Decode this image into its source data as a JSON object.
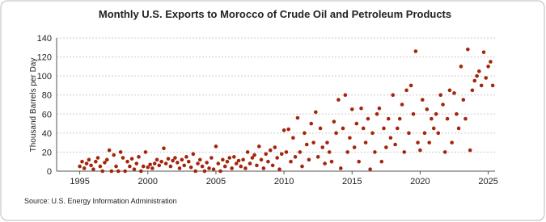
{
  "chart_data": {
    "type": "scatter",
    "title": "Monthly U.S. Exports to Morocco of Crude Oil and Petroleum Products",
    "y_label": "Thousand Barrels per Day",
    "source": "Source: U.S. Energy Information Administration",
    "xlim": [
      1993.3,
      2025.5
    ],
    "xticks": [
      1995,
      2000,
      2005,
      2010,
      2015,
      2020,
      2025
    ],
    "ylim": [
      0,
      140
    ],
    "yticks": [
      0,
      20,
      40,
      60,
      80,
      100,
      120,
      140
    ],
    "grid": true,
    "series": [
      {
        "color": "#a3260c",
        "x": [
          1995,
          1995.17,
          1995.33,
          1995.5,
          1995.67,
          1995.83,
          1996,
          1996.17,
          1996.33,
          1996.5,
          1996.67,
          1996.83,
          1997,
          1997.17,
          1997.33,
          1997.5,
          1997.67,
          1997.83,
          1998,
          1998.17,
          1998.33,
          1998.5,
          1998.67,
          1998.83,
          1999,
          1999.17,
          1999.33,
          1999.5,
          1999.67,
          1999.83,
          2000,
          2000.17,
          2000.33,
          2000.5,
          2000.67,
          2000.83,
          2001,
          2001.17,
          2001.33,
          2001.5,
          2001.67,
          2001.83,
          2002,
          2002.17,
          2002.33,
          2002.5,
          2002.67,
          2002.83,
          2003,
          2003.17,
          2003.33,
          2003.5,
          2003.67,
          2003.83,
          2004,
          2004.17,
          2004.33,
          2004.5,
          2004.67,
          2004.83,
          2005,
          2005.17,
          2005.33,
          2005.5,
          2005.67,
          2005.83,
          2006,
          2006.17,
          2006.33,
          2006.5,
          2006.67,
          2006.83,
          2007,
          2007.17,
          2007.33,
          2007.5,
          2007.67,
          2007.83,
          2008,
          2008.17,
          2008.33,
          2008.5,
          2008.67,
          2008.83,
          2009,
          2009.17,
          2009.33,
          2009.5,
          2009.67,
          2009.83,
          2010,
          2010.17,
          2010.33,
          2010.5,
          2010.67,
          2010.83,
          2011,
          2011.17,
          2011.33,
          2011.5,
          2011.67,
          2011.83,
          2012,
          2012.17,
          2012.33,
          2012.5,
          2012.67,
          2012.83,
          2013,
          2013.17,
          2013.33,
          2013.5,
          2013.67,
          2013.83,
          2014,
          2014.17,
          2014.33,
          2014.5,
          2014.67,
          2014.83,
          2015,
          2015.17,
          2015.33,
          2015.5,
          2015.67,
          2015.83,
          2016,
          2016.17,
          2016.33,
          2016.5,
          2016.67,
          2016.83,
          2017,
          2017.17,
          2017.33,
          2017.5,
          2017.67,
          2017.83,
          2018,
          2018.17,
          2018.33,
          2018.5,
          2018.67,
          2018.83,
          2019,
          2019.17,
          2019.33,
          2019.5,
          2019.67,
          2019.83,
          2020,
          2020.17,
          2020.33,
          2020.5,
          2020.67,
          2020.83,
          2021,
          2021.17,
          2021.33,
          2021.5,
          2021.67,
          2021.83,
          2022,
          2022.17,
          2022.33,
          2022.5,
          2022.67,
          2022.83,
          2023,
          2023.17,
          2023.33,
          2023.5,
          2023.67,
          2023.83,
          2024,
          2024.17,
          2024.33,
          2024.5,
          2024.67,
          2024.83,
          2025,
          2025.17,
          2025.33
        ],
        "values": [
          5,
          10,
          3,
          8,
          12,
          6,
          2,
          10,
          14,
          5,
          0,
          9,
          12,
          22,
          0,
          17,
          5,
          0,
          20,
          14,
          0,
          10,
          5,
          13,
          2,
          8,
          15,
          0,
          5,
          20,
          4,
          7,
          3,
          8,
          12,
          6,
          10,
          24,
          8,
          13,
          5,
          11,
          14,
          9,
          3,
          12,
          6,
          15,
          10,
          4,
          18,
          0,
          8,
          12,
          5,
          0,
          9,
          3,
          14,
          2,
          26,
          8,
          0,
          12,
          5,
          10,
          14,
          3,
          15,
          8,
          11,
          5,
          12,
          3,
          20,
          8,
          14,
          17,
          6,
          26,
          12,
          3,
          18,
          10,
          22,
          6,
          25,
          14,
          2,
          18,
          43,
          20,
          44,
          10,
          35,
          15,
          56,
          20,
          5,
          40,
          28,
          12,
          50,
          30,
          62,
          15,
          45,
          25,
          8,
          30,
          20,
          10,
          52,
          40,
          75,
          3,
          45,
          80,
          20,
          35,
          65,
          25,
          50,
          10,
          66,
          45,
          30,
          55,
          2,
          40,
          20,
          60,
          66,
          10,
          45,
          25,
          55,
          35,
          80,
          28,
          45,
          55,
          70,
          20,
          85,
          40,
          90,
          60,
          126,
          30,
          22,
          75,
          40,
          65,
          30,
          55,
          45,
          60,
          40,
          80,
          70,
          20,
          55,
          85,
          30,
          82,
          60,
          45,
          110,
          75,
          55,
          128,
          22,
          85,
          95,
          100,
          105,
          90,
          125,
          98,
          110,
          115,
          90
        ]
      }
    ]
  }
}
